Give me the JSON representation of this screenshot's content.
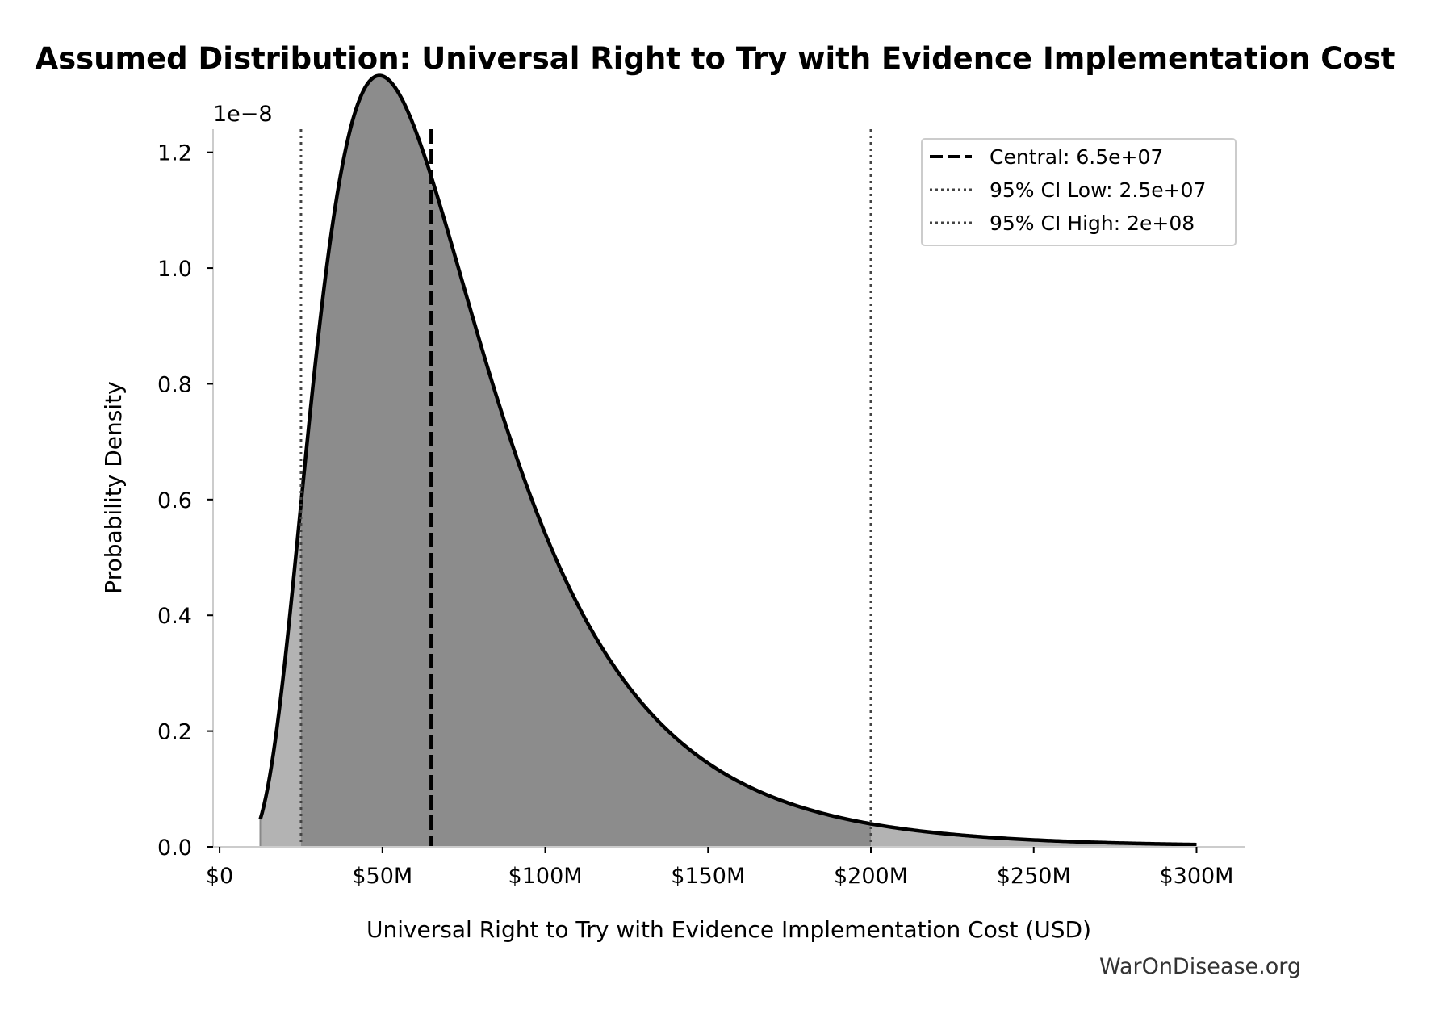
{
  "chart_data": {
    "type": "area",
    "title": "Assumed Distribution: Universal Right to Try with Evidence Implementation Cost",
    "xlabel": "Universal Right to Try with Evidence Implementation Cost (USD)",
    "ylabel": "Probability Density",
    "y_offset_label": "1e−8",
    "y_scale": 1e-08,
    "xlim": [
      -2000000,
      315000000
    ],
    "ylim": [
      0,
      1.24
    ],
    "x_ticks": [
      0,
      50000000,
      100000000,
      150000000,
      200000000,
      250000000,
      300000000
    ],
    "x_tick_labels": [
      "$0",
      "$50M",
      "$100M",
      "$150M",
      "$200M",
      "$250M",
      "$300M"
    ],
    "y_ticks": [
      0,
      0.2,
      0.4,
      0.6,
      0.8,
      1.0,
      1.2
    ],
    "y_tick_labels": [
      "0.0",
      "0.2",
      "0.4",
      "0.6",
      "0.8",
      "1.0",
      "1.2"
    ],
    "distribution": {
      "kind": "lognormal",
      "median": 65000000,
      "sigma": 0.53,
      "x_range": [
        12500000,
        300000000
      ]
    },
    "markers": {
      "central": 65000000,
      "ci_low": 25000000,
      "ci_high": 200000000
    },
    "series": [
      {
        "name": "Central: 6.5e+07",
        "style": "dashed",
        "value": 65000000
      },
      {
        "name": "95% CI Low: 2.5e+07",
        "style": "dotted",
        "value": 25000000
      },
      {
        "name": "95% CI High: 2e+08",
        "style": "dotted",
        "value": 200000000
      }
    ],
    "legend_position": "top-right",
    "grid": false,
    "colors": {
      "curve": "#000000",
      "fill_outer": "#b3b3b3",
      "fill_ci": "#8c8c8c",
      "ci_line": "#444444"
    }
  },
  "watermark": "WarOnDisease.org"
}
